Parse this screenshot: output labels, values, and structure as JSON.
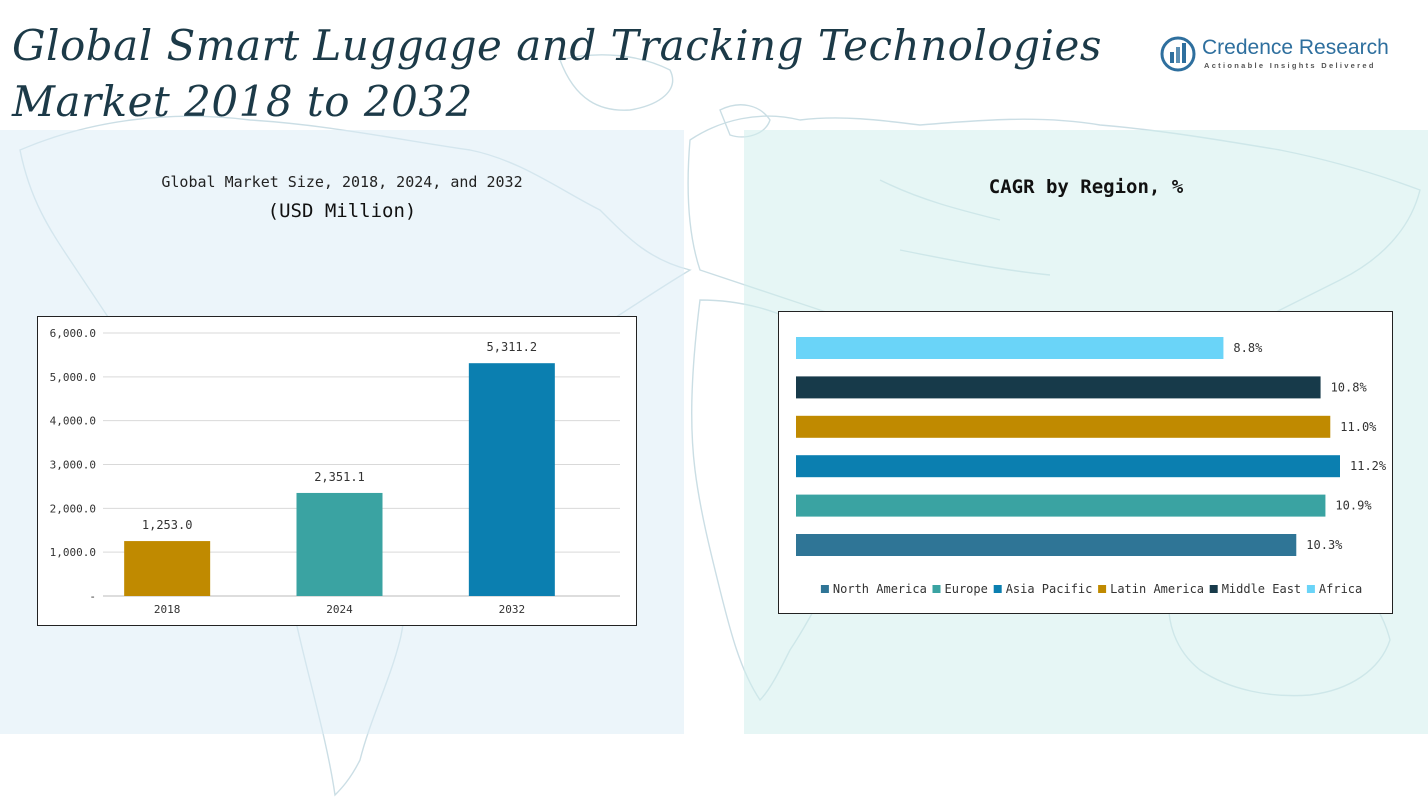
{
  "header": {
    "title": "Global Smart Luggage and Tracking Technologies Market 2018 to 2032"
  },
  "logo": {
    "name": "Credence Research",
    "tagline": "Actionable Insights Delivered",
    "icon": "bar-chart-circle-icon"
  },
  "colors": {
    "title": "#1c3a48",
    "bar_2018": "#c08a00",
    "bar_2024": "#3aa3a2",
    "bar_2032": "#0b7fb0",
    "north_america": "#2f7596",
    "europe": "#3aa3a2",
    "asia_pacific": "#0b7fb0",
    "latin_america": "#c08a00",
    "middle_east": "#173a4a",
    "africa": "#6ad4f8"
  },
  "chart_data": [
    {
      "type": "bar",
      "title": "Global Market Size, 2018, 2024, and 2032",
      "subtitle": "(USD Million)",
      "categories": [
        "2018",
        "2024",
        "2032"
      ],
      "values": [
        1253.0,
        2351.1,
        5311.2
      ],
      "value_labels": [
        "1,253.0",
        "2,351.1",
        "5,311.2"
      ],
      "y_ticks": [
        "-",
        "1,000.0",
        "2,000.0",
        "3,000.0",
        "4,000.0",
        "5,000.0",
        "6,000.0"
      ],
      "ylim": [
        0,
        6000
      ],
      "grid": true,
      "legend": "none"
    },
    {
      "type": "bar",
      "orientation": "horizontal",
      "title": "CAGR by Region, %",
      "categories": [
        "Africa",
        "Middle East",
        "Latin America",
        "Asia Pacific",
        "Europe",
        "North America"
      ],
      "values": [
        8.8,
        10.8,
        11.0,
        11.2,
        10.9,
        10.3
      ],
      "value_labels": [
        "8.8%",
        "10.8%",
        "11.0%",
        "11.2%",
        "10.9%",
        "10.3%"
      ],
      "legend_entries": [
        "North America",
        "Europe",
        "Asia Pacific",
        "Latin America",
        "Middle East",
        "Africa"
      ],
      "legend": "bottom",
      "xlim": [
        0,
        11.2
      ],
      "grid": false
    }
  ]
}
